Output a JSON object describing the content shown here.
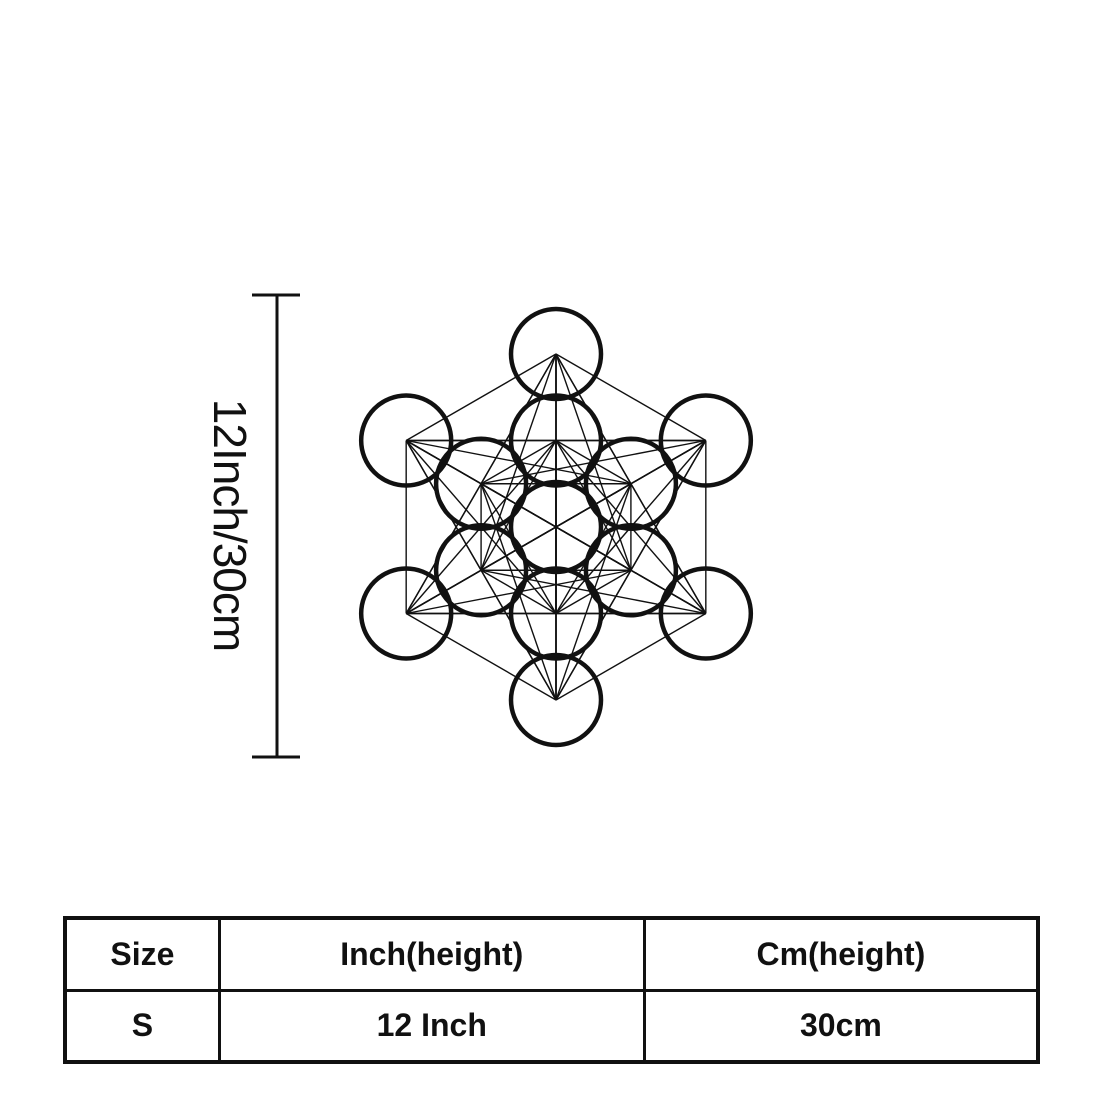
{
  "dimension_label": "12Inch/30cm",
  "figure": {
    "name": "Metatron's Cube",
    "color": "#111111"
  },
  "table": {
    "headers": [
      "Size",
      "Inch(height)",
      "Cm(height)"
    ],
    "rows": [
      [
        "S",
        "12 Inch",
        "30cm"
      ]
    ]
  }
}
